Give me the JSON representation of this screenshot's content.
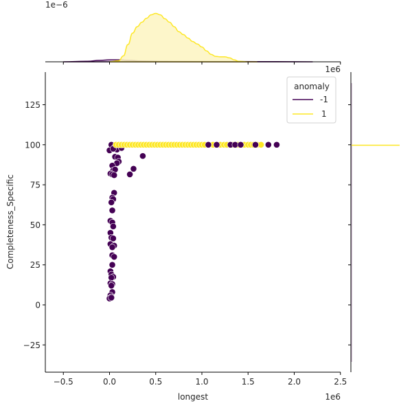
{
  "chart_data": {
    "type": "scatter",
    "kind": "jointplot",
    "title": "",
    "xlabel": "longest",
    "ylabel": "Completeness_Specific",
    "x_offset_label": "1e6",
    "top_marginal_offset_label": "1e−6",
    "right_marginal_offset_label": "1e6",
    "xlim": [
      -0.68,
      2.52
    ],
    "ylim": [
      -40,
      145
    ],
    "x_ticks": [
      -0.5,
      0.0,
      0.5,
      1.0,
      1.5,
      2.0,
      2.5
    ],
    "x_tick_labels": [
      "−0.5",
      "0.0",
      "0.5",
      "1.0",
      "1.5",
      "2.0",
      "2.5"
    ],
    "y_ticks": [
      -25,
      0,
      25,
      50,
      75,
      100,
      125
    ],
    "y_tick_labels": [
      "−25",
      "0",
      "25",
      "50",
      "75",
      "100",
      "125"
    ],
    "grid": false,
    "legend": {
      "title": "anomaly",
      "position": "upper right",
      "entries": [
        {
          "label": "-1",
          "color": "#440154"
        },
        {
          "label": "1",
          "color": "#fde725"
        }
      ]
    },
    "series": [
      {
        "name": "-1",
        "color": "#440154",
        "x_units": "1e6",
        "points": [
          [
            0.02,
            100
          ],
          [
            0.05,
            98
          ],
          [
            0.0,
            96.5
          ],
          [
            0.08,
            97
          ],
          [
            0.04,
            97.5
          ],
          [
            0.06,
            92.5
          ],
          [
            0.09,
            92
          ],
          [
            0.1,
            89.5
          ],
          [
            0.08,
            88.5
          ],
          [
            0.03,
            87
          ],
          [
            0.04,
            84
          ],
          [
            0.06,
            84.5
          ],
          [
            0.01,
            82
          ],
          [
            0.03,
            81.5
          ],
          [
            0.05,
            81
          ],
          [
            0.22,
            81.5
          ],
          [
            0.26,
            85
          ],
          [
            0.36,
            93
          ],
          [
            0.13,
            98
          ],
          [
            0.05,
            70
          ],
          [
            0.03,
            67
          ],
          [
            0.04,
            66
          ],
          [
            0.02,
            64
          ],
          [
            0.03,
            59
          ],
          [
            0.01,
            52.5
          ],
          [
            0.03,
            51.5
          ],
          [
            0.04,
            49
          ],
          [
            0.01,
            45
          ],
          [
            0.02,
            42
          ],
          [
            0.04,
            41.5
          ],
          [
            0.01,
            38
          ],
          [
            0.05,
            37
          ],
          [
            0.03,
            36
          ],
          [
            0.03,
            31
          ],
          [
            0.05,
            30
          ],
          [
            0.03,
            25
          ],
          [
            0.01,
            21
          ],
          [
            0.02,
            19
          ],
          [
            0.04,
            17.5
          ],
          [
            0.02,
            17
          ],
          [
            0.01,
            13.5
          ],
          [
            0.03,
            13
          ],
          [
            0.02,
            12
          ],
          [
            0.03,
            8
          ],
          [
            0.01,
            6
          ],
          [
            0.02,
            5
          ],
          [
            0.0,
            4
          ],
          [
            0.02,
            4.5
          ],
          [
            1.07,
            100
          ],
          [
            1.16,
            100
          ],
          [
            1.31,
            100
          ],
          [
            1.36,
            100
          ],
          [
            1.42,
            100
          ],
          [
            1.58,
            100
          ],
          [
            1.72,
            100
          ],
          [
            1.81,
            100
          ]
        ]
      },
      {
        "name": "1",
        "color": "#fde725",
        "x_units": "1e6",
        "points": [
          [
            0.07,
            100
          ],
          [
            0.1,
            100
          ],
          [
            0.13,
            100
          ],
          [
            0.16,
            100
          ],
          [
            0.19,
            100
          ],
          [
            0.22,
            100
          ],
          [
            0.25,
            100
          ],
          [
            0.28,
            100
          ],
          [
            0.31,
            100
          ],
          [
            0.34,
            100
          ],
          [
            0.37,
            100
          ],
          [
            0.4,
            100
          ],
          [
            0.43,
            100
          ],
          [
            0.46,
            100
          ],
          [
            0.49,
            100
          ],
          [
            0.52,
            100
          ],
          [
            0.55,
            100
          ],
          [
            0.58,
            100
          ],
          [
            0.61,
            100
          ],
          [
            0.64,
            100
          ],
          [
            0.67,
            100
          ],
          [
            0.7,
            100
          ],
          [
            0.73,
            100
          ],
          [
            0.76,
            100
          ],
          [
            0.79,
            100
          ],
          [
            0.82,
            100
          ],
          [
            0.85,
            100
          ],
          [
            0.88,
            100
          ],
          [
            0.91,
            100
          ],
          [
            0.94,
            100
          ],
          [
            0.97,
            100
          ],
          [
            1.0,
            100
          ],
          [
            1.03,
            100
          ],
          [
            1.12,
            100
          ],
          [
            1.2,
            100
          ],
          [
            1.24,
            100
          ],
          [
            1.27,
            100
          ],
          [
            1.34,
            100
          ],
          [
            1.39,
            100
          ],
          [
            1.46,
            100
          ],
          [
            1.5,
            100
          ],
          [
            1.53,
            100
          ],
          [
            1.56,
            100
          ],
          [
            1.6,
            100
          ],
          [
            1.64,
            100
          ]
        ]
      }
    ],
    "marginal_top": {
      "type": "kde",
      "xlabel_units": "1e6",
      "yscale_label": "1e−6",
      "series": [
        {
          "name": "1",
          "color": "#fde725",
          "fill": "#fdf5c1",
          "x": [
            0.0,
            0.1,
            0.15,
            0.2,
            0.25,
            0.3,
            0.35,
            0.4,
            0.45,
            0.5,
            0.55,
            0.6,
            0.65,
            0.7,
            0.75,
            0.8,
            0.85,
            0.9,
            0.95,
            1.0,
            1.05,
            1.1,
            1.15,
            1.2,
            1.25,
            1.3,
            1.35,
            1.4,
            1.5,
            1.6
          ],
          "density_rel": [
            0.0,
            0.02,
            0.12,
            0.35,
            0.58,
            0.71,
            0.8,
            0.88,
            0.95,
            0.98,
            0.95,
            0.87,
            0.8,
            0.71,
            0.61,
            0.55,
            0.48,
            0.41,
            0.36,
            0.3,
            0.22,
            0.15,
            0.11,
            0.1,
            0.1,
            0.08,
            0.04,
            0.01,
            0.0,
            0.0
          ]
        },
        {
          "name": "-1",
          "color": "#440154",
          "fill": "#c9b3cc",
          "x": [
            -0.5,
            -0.25,
            -0.1,
            0.0,
            0.1,
            0.2,
            0.35,
            0.6,
            1.0,
            1.4,
            1.8,
            2.2
          ],
          "density_rel": [
            0.0,
            0.01,
            0.03,
            0.04,
            0.04,
            0.03,
            0.015,
            0.008,
            0.005,
            0.005,
            0.003,
            0.0
          ]
        }
      ]
    },
    "marginal_right": {
      "type": "kde",
      "xscale_label": "1e6",
      "series": [
        {
          "name": "1",
          "color": "#fde725",
          "note": "degenerate spike at y=100"
        },
        {
          "name": "-1",
          "color": "#440154",
          "note": "near-zero flat density"
        }
      ]
    }
  }
}
